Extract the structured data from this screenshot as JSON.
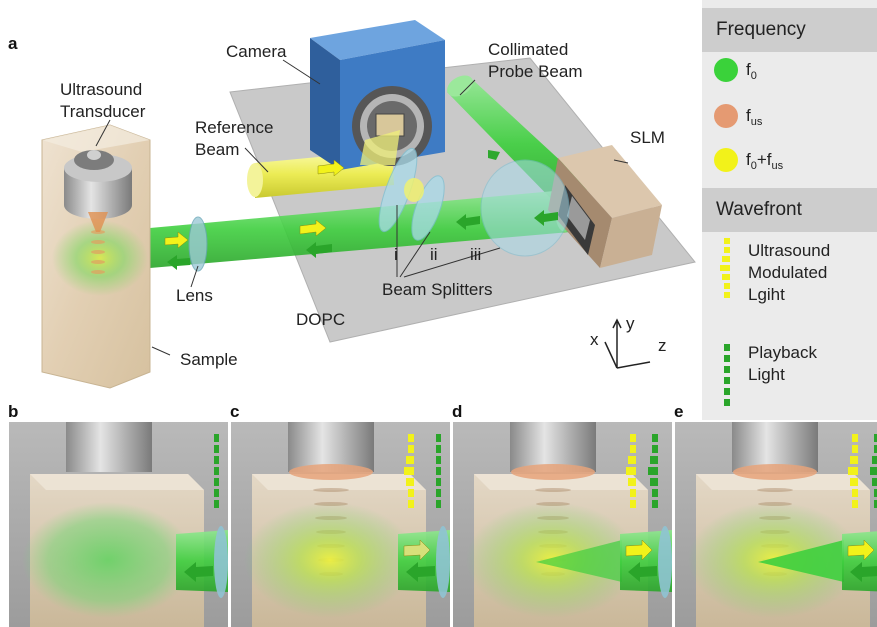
{
  "panel_labels": {
    "a": "a",
    "b": "b",
    "c": "c",
    "d": "d",
    "e": "e"
  },
  "setup": {
    "camera": "Camera",
    "collimated_probe_beam": [
      "Collimated",
      "Probe Beam"
    ],
    "ultrasound_transducer": [
      "Ultrasound",
      "Transducer"
    ],
    "reference_beam": [
      "Reference",
      "Beam"
    ],
    "slm": "SLM",
    "lens": "Lens",
    "splitter_i": "i",
    "splitter_ii": "ii",
    "splitter_iii": "iii",
    "beam_splitters": "Beam Splitters",
    "dopc": "DOPC",
    "sample": "Sample",
    "axis_x": "x",
    "axis_y": "y",
    "axis_z": "z"
  },
  "legend": {
    "frequency_title": "Frequency",
    "items": [
      {
        "base": "f",
        "sub": "0",
        "suffix": "",
        "suffix_sub": "",
        "color": "#3ad23a"
      },
      {
        "base": "f",
        "sub": "us",
        "suffix": "",
        "suffix_sub": "",
        "color": "#e59a72"
      },
      {
        "base": "f",
        "sub": "0",
        "suffix": "+f",
        "suffix_sub": "us",
        "color": "#f2f21a"
      }
    ],
    "wavefront_title": "Wavefront",
    "ultrasound_modulated": [
      "Ultrasound",
      "Modulated",
      "Lgiht"
    ],
    "playback": [
      "Playback",
      "Light"
    ]
  },
  "colors": {
    "green": "#3ad23a",
    "yellow": "#f2f21a",
    "orange": "#e59a72"
  }
}
